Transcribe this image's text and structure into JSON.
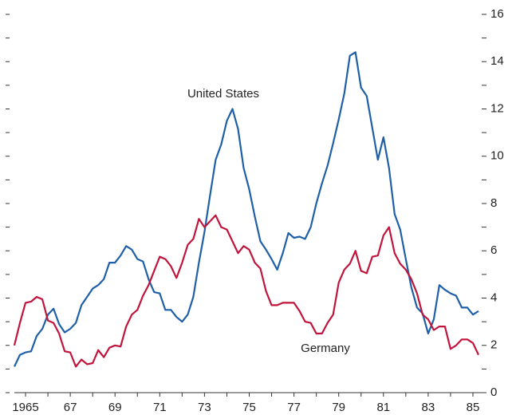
{
  "chart_data": {
    "type": "line",
    "annotations": [
      "United States",
      "Germany"
    ],
    "x": [
      1964.5,
      1964.75,
      1965,
      1965.25,
      1965.5,
      1965.75,
      1966,
      1966.25,
      1966.5,
      1966.75,
      1967,
      1967.25,
      1967.5,
      1967.75,
      1968,
      1968.25,
      1968.5,
      1968.75,
      1969,
      1969.25,
      1969.5,
      1969.75,
      1970,
      1970.25,
      1970.5,
      1970.75,
      1971,
      1971.25,
      1971.5,
      1971.75,
      1972,
      1972.25,
      1972.5,
      1972.75,
      1973,
      1973.25,
      1973.5,
      1973.75,
      1974,
      1974.25,
      1974.5,
      1974.75,
      1975,
      1975.25,
      1975.5,
      1975.75,
      1976,
      1976.25,
      1976.5,
      1976.75,
      1977,
      1977.25,
      1977.5,
      1977.75,
      1978,
      1978.25,
      1978.5,
      1978.75,
      1979,
      1979.25,
      1979.5,
      1979.75,
      1980,
      1980.25,
      1980.5,
      1980.75,
      1981,
      1981.25,
      1981.5,
      1981.75,
      1982,
      1982.25,
      1982.5,
      1982.75,
      1983,
      1983.25,
      1983.5,
      1983.75,
      1984,
      1984.25,
      1984.5,
      1984.75,
      1985,
      1985.25
    ],
    "series": [
      {
        "name": "United States",
        "color": "#1f5fa8",
        "values": [
          1.1,
          1.6,
          1.7,
          1.75,
          2.4,
          2.7,
          3.3,
          3.55,
          2.9,
          2.55,
          2.7,
          2.95,
          3.7,
          4.05,
          4.4,
          4.55,
          4.8,
          5.5,
          5.5,
          5.8,
          6.2,
          6.05,
          5.65,
          5.55,
          4.8,
          4.25,
          4.2,
          3.5,
          3.5,
          3.2,
          3.0,
          3.3,
          4.05,
          5.5,
          6.8,
          8.35,
          9.85,
          10.5,
          11.5,
          12.0,
          11.15,
          9.5,
          8.6,
          7.45,
          6.4,
          6.05,
          5.65,
          5.2,
          5.9,
          6.75,
          6.55,
          6.6,
          6.5,
          7.0,
          8.0,
          8.85,
          9.6,
          10.55,
          11.55,
          12.65,
          14.25,
          14.4,
          12.9,
          12.55,
          11.2,
          9.85,
          10.8,
          9.5,
          7.55,
          6.9,
          5.65,
          4.45,
          3.6,
          3.35,
          2.5,
          3.1,
          4.55,
          4.35,
          4.2,
          4.1,
          3.6,
          3.6,
          3.3,
          3.45
        ]
      },
      {
        "name": "Germany",
        "color": "#c0143c",
        "values": [
          2.0,
          2.95,
          3.8,
          3.85,
          4.05,
          3.95,
          3.05,
          2.95,
          2.5,
          1.75,
          1.7,
          1.1,
          1.4,
          1.2,
          1.25,
          1.8,
          1.5,
          1.9,
          2.0,
          1.95,
          2.8,
          3.3,
          3.5,
          4.1,
          4.55,
          5.15,
          5.75,
          5.65,
          5.35,
          4.85,
          5.5,
          6.25,
          6.5,
          7.35,
          7.0,
          7.25,
          7.5,
          7.0,
          6.9,
          6.4,
          5.9,
          6.2,
          6.05,
          5.5,
          5.25,
          4.3,
          3.7,
          3.7,
          3.8,
          3.8,
          3.8,
          3.45,
          3.0,
          2.95,
          2.5,
          2.5,
          2.95,
          3.3,
          4.65,
          5.2,
          5.45,
          6.0,
          5.15,
          5.05,
          5.75,
          5.8,
          6.65,
          7.0,
          5.9,
          5.45,
          5.2,
          4.8,
          4.2,
          3.3,
          3.1,
          2.65,
          2.8,
          2.8,
          1.85,
          2.0,
          2.25,
          2.25,
          2.1,
          1.6
        ]
      }
    ],
    "xlim": [
      1964.5,
      1985.5
    ],
    "xticks": [
      {
        "value": 1965,
        "label": "1965"
      },
      {
        "value": 1967,
        "label": "67"
      },
      {
        "value": 1969,
        "label": "69"
      },
      {
        "value": 1971,
        "label": "71"
      },
      {
        "value": 1973,
        "label": "73"
      },
      {
        "value": 1975,
        "label": "75"
      },
      {
        "value": 1977,
        "label": "77"
      },
      {
        "value": 1979,
        "label": "79"
      },
      {
        "value": 1981,
        "label": "81"
      },
      {
        "value": 1983,
        "label": "83"
      },
      {
        "value": 1985,
        "label": "85"
      }
    ],
    "minor_xticks": [
      1966,
      1968,
      1970,
      1972,
      1974,
      1976,
      1978,
      1980,
      1982,
      1984
    ],
    "ylim": [
      0,
      16
    ],
    "yticks": [
      0,
      2,
      4,
      6,
      8,
      10,
      12,
      14,
      16
    ],
    "minor_yticks": [
      1,
      3,
      5,
      7,
      9,
      11,
      13,
      15
    ]
  }
}
